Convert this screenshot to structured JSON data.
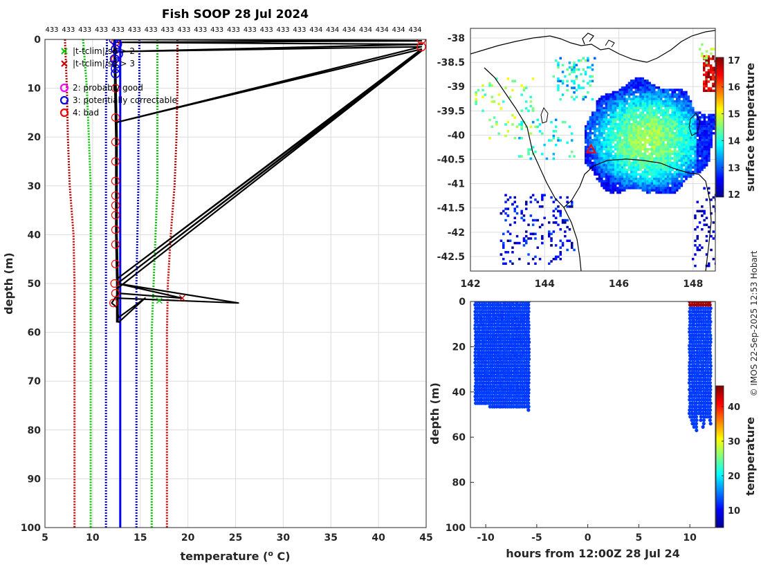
{
  "title": "Fish SOOP 28 Jul 2024",
  "credit": "© IMOS 22-Sep-2025 12:53 Hobart",
  "colors": {
    "profile": "#000000",
    "climatology_mean": "#0000ff",
    "climatology_2sd": "#00cc00",
    "climatology_3sd": "#cc0000",
    "flag_probably_good": "#ff00ff",
    "flag_correctable": "#0000ff",
    "flag_bad": "#ff0000",
    "coast": "#000000"
  },
  "chart_data": [
    {
      "id": "profile",
      "type": "line",
      "title": "Fish SOOP 28 Jul 2024",
      "xlabel_prefix": "temperature (",
      "xlabel_super": "o",
      "xlabel_suffix": " C)",
      "ylabel": "depth (m)",
      "xlim": [
        5,
        45
      ],
      "ylim": [
        100,
        0
      ],
      "x_ticks": [
        "5",
        "10",
        "15",
        "20",
        "25",
        "30",
        "35",
        "40",
        "45"
      ],
      "y_ticks": [
        "0",
        "10",
        "20",
        "30",
        "40",
        "50",
        "60",
        "70",
        "80",
        "90",
        "100"
      ],
      "top_tick_labels": [
        "433",
        "433",
        "433",
        "433",
        "433",
        "433",
        "433",
        "433",
        "433",
        "433",
        "433",
        "433",
        "433",
        "433",
        "433",
        "433",
        "434",
        "434",
        "434",
        "434",
        "434",
        "434",
        "434"
      ],
      "grid": true,
      "legend": [
        {
          "marker": "x",
          "color": "#00cc00",
          "label": "|t-tclim|/sd > 2"
        },
        {
          "marker": "x",
          "color": "#cc0000",
          "label": "|t-tclim|/sd > 3"
        },
        {
          "marker": "o",
          "color": "#ff00ff",
          "label": "2: probably good"
        },
        {
          "marker": "o",
          "color": "#0000ff",
          "label": "3: potentially correctable"
        },
        {
          "marker": "o",
          "color": "#ff0000",
          "label": "4: bad"
        }
      ],
      "climatology": {
        "depth": [
          0,
          5,
          10,
          20,
          30,
          40,
          50,
          60,
          70,
          80,
          90,
          100
        ],
        "mean": [
          12.9,
          12.9,
          12.9,
          12.9,
          12.9,
          12.9,
          12.9,
          12.9,
          12.9,
          12.9,
          12.9,
          12.9
        ],
        "minus2sd": [
          9.0,
          9.2,
          9.4,
          9.6,
          9.8,
          9.8,
          9.8,
          9.8,
          9.8,
          9.8,
          9.8,
          9.8
        ],
        "plus2sd": [
          16.8,
          16.8,
          16.8,
          16.8,
          16.8,
          16.6,
          16.4,
          16.2,
          16.2,
          16.2,
          16.2,
          16.2
        ],
        "minus3sd": [
          7.1,
          7.2,
          7.3,
          7.4,
          7.6,
          8.0,
          8.1,
          8.1,
          8.1,
          8.1,
          8.1,
          8.1
        ],
        "plus3sd": [
          18.9,
          18.9,
          18.9,
          18.8,
          18.6,
          18.2,
          17.9,
          17.8,
          17.8,
          17.8,
          17.8,
          17.8
        ],
        "minus1sd": [
          11.5,
          11.5,
          11.4,
          11.4,
          11.4,
          11.4,
          11.4,
          11.4,
          11.4,
          11.4,
          11.4,
          11.4
        ],
        "plus1sd": [
          14.9,
          14.9,
          14.9,
          14.8,
          14.8,
          14.7,
          14.6,
          14.6,
          14.6,
          14.6,
          14.6,
          14.6
        ]
      },
      "profile_xy": [
        [
          12.3,
          0
        ],
        [
          44.5,
          0.3
        ],
        [
          12.4,
          0.6
        ],
        [
          44.6,
          1.0
        ],
        [
          12.5,
          2.5
        ],
        [
          44.5,
          1.5
        ],
        [
          12.5,
          17
        ],
        [
          44.5,
          2
        ],
        [
          12.6,
          49
        ],
        [
          44.5,
          2.2
        ],
        [
          12.6,
          50
        ],
        [
          44.5,
          2.4
        ],
        [
          12.6,
          51
        ],
        [
          12.6,
          53
        ],
        [
          25.3,
          54
        ],
        [
          12.6,
          50
        ],
        [
          19.4,
          53
        ],
        [
          12.7,
          52
        ],
        [
          12.0,
          54
        ],
        [
          12.6,
          55
        ],
        [
          12.7,
          57
        ],
        [
          15.5,
          53
        ],
        [
          12.7,
          58
        ]
      ],
      "profile_trunk_x": [
        12.3,
        12.4,
        12.5,
        12.5,
        12.5,
        12.6,
        12.6,
        12.6
      ],
      "profile_trunk_y": [
        0,
        10,
        20,
        30,
        40,
        50,
        55,
        58
      ],
      "flags_bad_depths": [
        0.5,
        2,
        4,
        10,
        16,
        21,
        25,
        29,
        32,
        34,
        36,
        39,
        42,
        46,
        50,
        52,
        54
      ],
      "flags_bad_x": [
        12.4,
        12.4,
        12.4,
        12.4,
        12.4,
        12.4,
        12.4,
        12.4,
        12.4,
        12.4,
        12.4,
        12.4,
        12.4,
        12.4,
        12.3,
        12.4,
        12.2
      ],
      "flags_bad_outliers": [
        [
          44.5,
          0
        ],
        [
          44.5,
          1.5
        ]
      ],
      "flags_correctable_depths": [
        0,
        1,
        2,
        3,
        4,
        5,
        6,
        7
      ],
      "flags_correctable_x": [
        12.2,
        12.6,
        12.4,
        12.7,
        12.3,
        12.5,
        12.4,
        12.4
      ],
      "exceed_2sd": [
        [
          17.0,
          53.5
        ]
      ],
      "exceed_3sd": [
        [
          19.4,
          53.0
        ]
      ]
    },
    {
      "id": "map",
      "type": "heatmap",
      "x_ticks": [
        "142",
        "144",
        "146",
        "148"
      ],
      "y_ticks": [
        "-38",
        "-38.5",
        "-39",
        "-39.5",
        "-40",
        "-40.5",
        "-41",
        "-41.5",
        "-42",
        "-42.5"
      ],
      "xlim": [
        142,
        148.6
      ],
      "ylim": [
        -42.8,
        -37.8
      ],
      "colorbar_label": "surface temperature",
      "colorbar_ticks": [
        "12",
        "13",
        "14",
        "15",
        "16",
        "17"
      ],
      "colorbar_range": [
        11.9,
        17.1
      ],
      "marker": {
        "lon": 145.25,
        "lat": -40.3,
        "symbol": "triangle",
        "color": "#ff0000"
      }
    },
    {
      "id": "timeseries",
      "type": "scatter",
      "xlabel": "hours from 12:00Z 28 Jul 24",
      "ylabel": "depth (m)",
      "x_ticks": [
        "-10",
        "-5",
        "0",
        "5",
        "10"
      ],
      "y_ticks": [
        "0",
        "20",
        "40",
        "60",
        "80",
        "100"
      ],
      "xlim": [
        -11.5,
        12.5
      ],
      "ylim": [
        100,
        0
      ],
      "colorbar_label": "temperature",
      "colorbar_ticks": [
        "10",
        "20",
        "30",
        "40"
      ],
      "colorbar_range": [
        5,
        46
      ],
      "group1_hours": [
        -11,
        -5.8
      ],
      "group1_maxdepth": [
        46,
        48
      ],
      "group2_hours": [
        10,
        12
      ],
      "group2_maxdepth": [
        50,
        58
      ],
      "typical_temperature": 12.5,
      "group2_top_temperature": 44.5
    }
  ]
}
